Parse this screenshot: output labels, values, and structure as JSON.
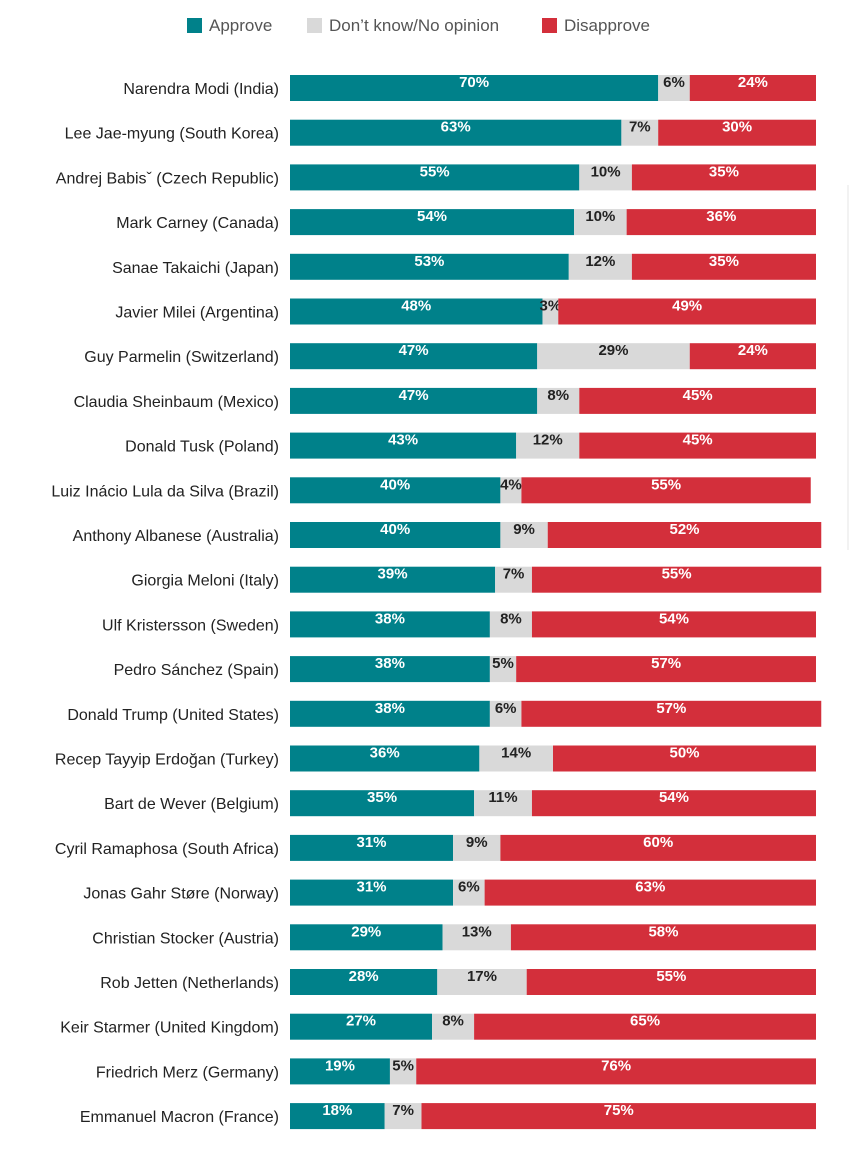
{
  "chart_data": {
    "type": "bar",
    "orientation": "horizontal",
    "stacked": true,
    "legend_position": "top",
    "xlim": [
      0,
      100
    ],
    "grid": false,
    "colors": {
      "Approve": "#00818a",
      "Don't know/No opinion": "#d9d9d9",
      "Disapprove": "#d32f3b"
    },
    "value_label_colors": {
      "Approve": "#ffffff",
      "Don't know/No opinion": "#222222",
      "Disapprove": "#ffffff"
    },
    "legend": [
      "Approve",
      "Don’t know/No opinion",
      "Disapprove"
    ],
    "categories": [
      "Narendra Modi (India)",
      "Lee Jae-myung (South Korea)",
      "Andrej Babisˇ (Czech Republic)",
      "Mark Carney (Canada)",
      "Sanae Takaichi (Japan)",
      "Javier Milei (Argentina)",
      "Guy Parmelin (Switzerland)",
      "Claudia Sheinbaum (Mexico)",
      "Donald Tusk (Poland)",
      "Luiz Inácio Lula da Silva (Brazil)",
      "Anthony Albanese (Australia)",
      "Giorgia Meloni (Italy)",
      "Ulf Kristersson (Sweden)",
      "Pedro Sánchez (Spain)",
      "Donald Trump (United States)",
      "Recep Tayyip Erdoğan (Turkey)",
      "Bart de Wever (Belgium)",
      "Cyril Ramaphosa (South Africa)",
      "Jonas Gahr Støre (Norway)",
      "Christian Stocker (Austria)",
      "Rob Jetten (Netherlands)",
      "Keir Starmer (United Kingdom)",
      "Friedrich Merz (Germany)",
      "Emmanuel Macron (France)"
    ],
    "series": [
      {
        "name": "Approve",
        "values": [
          70,
          63,
          55,
          54,
          53,
          48,
          47,
          47,
          43,
          40,
          40,
          39,
          38,
          38,
          38,
          36,
          35,
          31,
          31,
          29,
          28,
          27,
          19,
          18
        ]
      },
      {
        "name": "Don't know/No opinion",
        "values": [
          6,
          7,
          10,
          10,
          12,
          3,
          29,
          8,
          12,
          4,
          9,
          7,
          8,
          5,
          6,
          14,
          11,
          9,
          6,
          13,
          17,
          8,
          5,
          7
        ]
      },
      {
        "name": "Disapprove",
        "values": [
          24,
          30,
          35,
          36,
          35,
          49,
          24,
          45,
          45,
          55,
          52,
          55,
          54,
          57,
          57,
          50,
          54,
          60,
          63,
          58,
          55,
          65,
          76,
          75
        ]
      }
    ]
  }
}
